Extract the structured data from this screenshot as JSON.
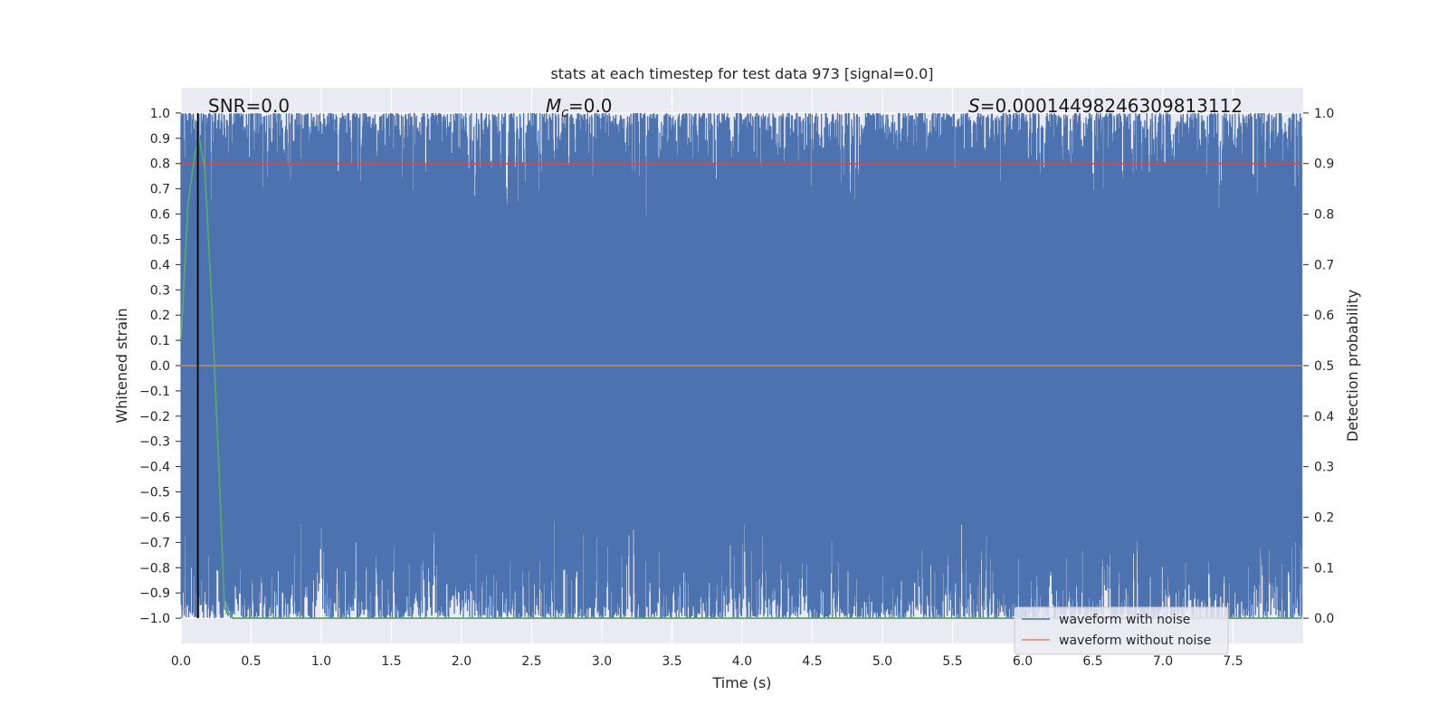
{
  "chart_data": {
    "type": "line",
    "title": "stats at each timestep for test data 973 [signal=0.0]",
    "xlabel": "Time (s)",
    "ylabel_left": "Whitened strain",
    "ylabel_right": "Detection probability",
    "xlim": [
      0.0,
      8.0
    ],
    "ylim_left": [
      -1.1,
      1.1
    ],
    "ylim_right": [
      -0.05,
      1.05
    ],
    "x_ticks": [
      "0.0",
      "0.5",
      "1.0",
      "1.5",
      "2.0",
      "2.5",
      "3.0",
      "3.5",
      "4.0",
      "4.5",
      "5.0",
      "5.5",
      "6.0",
      "6.5",
      "7.0",
      "7.5"
    ],
    "y_ticks_left": [
      "1.0",
      "0.9",
      "0.8",
      "0.7",
      "0.6",
      "0.5",
      "0.4",
      "0.3",
      "0.2",
      "0.1",
      "0.0",
      "−0.1",
      "−0.2",
      "−0.3",
      "−0.4",
      "−0.5",
      "−0.6",
      "−0.7",
      "−0.8",
      "−0.9",
      "−1.0"
    ],
    "y_ticks_right": [
      "1.0",
      "0.9",
      "0.8",
      "0.7",
      "0.6",
      "0.5",
      "0.4",
      "0.3",
      "0.2",
      "0.1",
      "0.0"
    ],
    "grid": true,
    "legend_position": "lower-right",
    "annotations": {
      "snr": "SNR=0.0",
      "mc_symbol": "M",
      "mc_sub": "c",
      "mc_value": "=0.0",
      "s_symbol": "S",
      "s_value": "=0.00014498246309813112"
    },
    "series": [
      {
        "name": "waveform with noise",
        "color": "#4c72b0",
        "axis": "left",
        "description_range": [
          -1.0,
          1.0
        ]
      },
      {
        "name": "waveform without noise",
        "color": "#dd8452",
        "axis": "left",
        "values_constant": 0.0
      },
      {
        "name": "",
        "color": "#55a868",
        "axis": "right",
        "x": [
          0.0,
          0.05,
          0.1,
          0.13,
          0.17,
          0.22,
          0.27,
          0.31,
          0.37,
          8.0
        ],
        "y": [
          0.55,
          0.82,
          0.92,
          0.95,
          0.89,
          0.62,
          0.3,
          0.02,
          0.0,
          0.0
        ]
      }
    ],
    "threshold_line": {
      "axis": "right",
      "y": 0.9,
      "color": "#c44e52"
    },
    "vertical_line": {
      "x": 0.12,
      "color": "#000000"
    }
  }
}
